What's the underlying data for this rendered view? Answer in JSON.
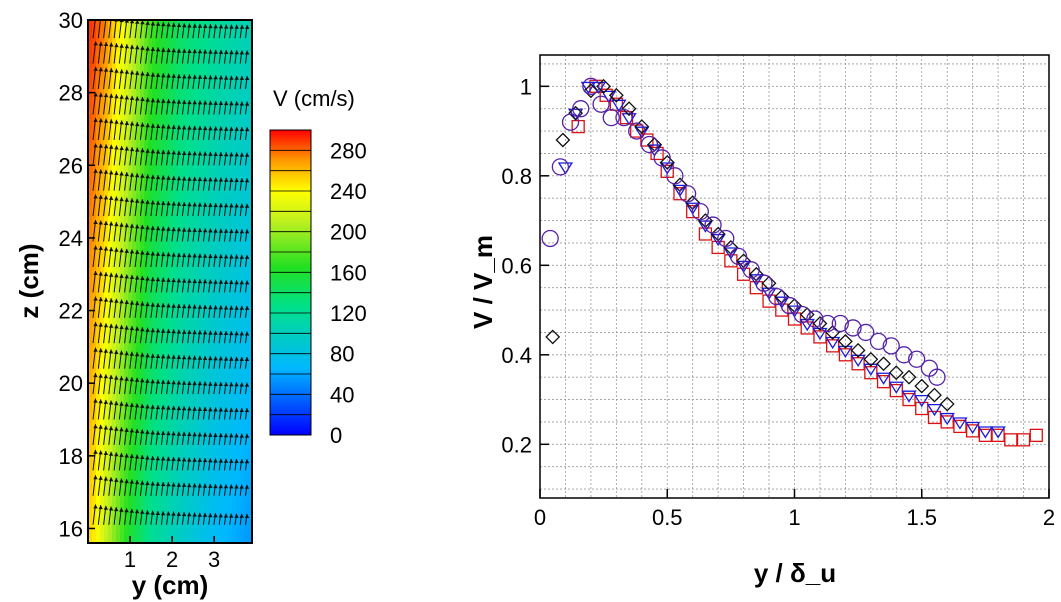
{
  "colors": {
    "square": "#dd1111",
    "triangle": "#1a1adb",
    "diamond": "#111111",
    "circle": "#5522aa",
    "grid": "#9a9a9a"
  },
  "chart_data": [
    {
      "type": "heatmap",
      "title": "",
      "xlabel": "y (cm)",
      "ylabel": "z (cm)",
      "xlim": [
        0,
        3.9
      ],
      "ylim": [
        15.6,
        30
      ],
      "x_ticks": [
        "1",
        "2",
        "3"
      ],
      "y_ticks": [
        "16",
        "18",
        "20",
        "22",
        "24",
        "26",
        "28",
        "30"
      ],
      "color_variable": "V",
      "colorbar": {
        "title": "V (cm/s)",
        "range": [
          0,
          300
        ],
        "tick_labels": [
          "0",
          "40",
          "80",
          "120",
          "160",
          "200",
          "240",
          "280"
        ],
        "legend_placement": "right"
      },
      "velocity_profile": {
        "y_cm": [
          0.1,
          0.4,
          0.9,
          1.5,
          2.2,
          3.0,
          3.8
        ],
        "V_cm_s_at_top": [
          290,
          275,
          230,
          175,
          140,
          120,
          105
        ],
        "V_cm_s_at_bottom": [
          250,
          215,
          165,
          120,
          95,
          70,
          55
        ]
      },
      "vector_rows_z_cm": [
        16.1,
        16.9,
        17.6,
        18.3,
        19.0,
        19.7,
        20.4,
        21.1,
        21.8,
        22.5,
        23.2,
        23.9,
        24.6,
        25.3,
        26.0,
        26.7,
        27.4,
        28.1,
        28.8,
        29.5
      ],
      "vector_overlay": "arrows"
    },
    {
      "type": "scatter",
      "title": "",
      "xlabel": "y / δ_u",
      "ylabel": "V / V_m",
      "xlim": [
        0,
        2
      ],
      "ylim": [
        0.08,
        1.07
      ],
      "x_ticks": [
        "0",
        "0.5",
        "1",
        "1.5",
        "2"
      ],
      "y_ticks": [
        "0.2",
        "0.4",
        "0.6",
        "0.8",
        "1"
      ],
      "grid": true,
      "series": [
        {
          "marker": "square",
          "x": [
            0.15,
            0.22,
            0.26,
            0.3,
            0.34,
            0.38,
            0.42,
            0.46,
            0.5,
            0.55,
            0.6,
            0.65,
            0.7,
            0.75,
            0.8,
            0.85,
            0.9,
            0.95,
            1.0,
            1.05,
            1.1,
            1.15,
            1.2,
            1.25,
            1.3,
            1.35,
            1.4,
            1.45,
            1.5,
            1.55,
            1.6,
            1.65,
            1.7,
            1.75,
            1.8,
            1.85,
            1.9,
            1.95
          ],
          "y": [
            0.91,
            1.0,
            0.98,
            0.96,
            0.93,
            0.9,
            0.88,
            0.85,
            0.81,
            0.76,
            0.72,
            0.67,
            0.64,
            0.61,
            0.58,
            0.55,
            0.52,
            0.5,
            0.48,
            0.46,
            0.44,
            0.42,
            0.4,
            0.38,
            0.36,
            0.34,
            0.32,
            0.3,
            0.28,
            0.26,
            0.25,
            0.24,
            0.23,
            0.22,
            0.22,
            0.21,
            0.21,
            0.22
          ]
        },
        {
          "marker": "triangle",
          "x": [
            0.1,
            0.14,
            0.19,
            0.23,
            0.27,
            0.31,
            0.35,
            0.4,
            0.45,
            0.5,
            0.55,
            0.6,
            0.65,
            0.7,
            0.75,
            0.8,
            0.85,
            0.9,
            0.95,
            1.0,
            1.05,
            1.1,
            1.15,
            1.2,
            1.25,
            1.3,
            1.35,
            1.4,
            1.45,
            1.5,
            1.55,
            1.6,
            1.65,
            1.7,
            1.75,
            1.8
          ],
          "y": [
            0.82,
            0.94,
            1.0,
            1.0,
            0.98,
            0.96,
            0.93,
            0.9,
            0.86,
            0.82,
            0.77,
            0.73,
            0.69,
            0.66,
            0.63,
            0.6,
            0.57,
            0.54,
            0.52,
            0.5,
            0.47,
            0.45,
            0.43,
            0.41,
            0.39,
            0.37,
            0.35,
            0.33,
            0.31,
            0.3,
            0.28,
            0.26,
            0.25,
            0.24,
            0.23,
            0.23
          ]
        },
        {
          "marker": "diamond",
          "x": [
            0.05,
            0.09,
            0.14,
            0.2,
            0.25,
            0.3,
            0.35,
            0.4,
            0.45,
            0.5,
            0.55,
            0.6,
            0.65,
            0.7,
            0.75,
            0.8,
            0.85,
            0.9,
            0.95,
            1.0,
            1.05,
            1.1,
            1.15,
            1.2,
            1.25,
            1.3,
            1.35,
            1.4,
            1.45,
            1.5,
            1.55,
            1.6
          ],
          "y": [
            0.44,
            0.88,
            0.94,
            0.99,
            1.0,
            0.98,
            0.95,
            0.91,
            0.87,
            0.83,
            0.78,
            0.74,
            0.7,
            0.67,
            0.64,
            0.61,
            0.58,
            0.56,
            0.53,
            0.51,
            0.49,
            0.47,
            0.45,
            0.43,
            0.41,
            0.39,
            0.38,
            0.36,
            0.35,
            0.33,
            0.31,
            0.29
          ]
        },
        {
          "marker": "circle",
          "x": [
            0.04,
            0.08,
            0.12,
            0.16,
            0.2,
            0.24,
            0.28,
            0.33,
            0.38,
            0.43,
            0.48,
            0.53,
            0.58,
            0.63,
            0.68,
            0.73,
            0.78,
            0.83,
            0.88,
            0.93,
            0.98,
            1.03,
            1.08,
            1.13,
            1.18,
            1.23,
            1.28,
            1.33,
            1.38,
            1.43,
            1.48,
            1.53,
            1.56
          ],
          "y": [
            0.66,
            0.82,
            0.92,
            0.95,
            1.0,
            0.96,
            0.93,
            0.93,
            0.9,
            0.87,
            0.84,
            0.8,
            0.76,
            0.72,
            0.69,
            0.66,
            0.62,
            0.59,
            0.56,
            0.53,
            0.51,
            0.49,
            0.48,
            0.47,
            0.47,
            0.46,
            0.45,
            0.43,
            0.42,
            0.4,
            0.39,
            0.37,
            0.35
          ]
        }
      ]
    }
  ]
}
